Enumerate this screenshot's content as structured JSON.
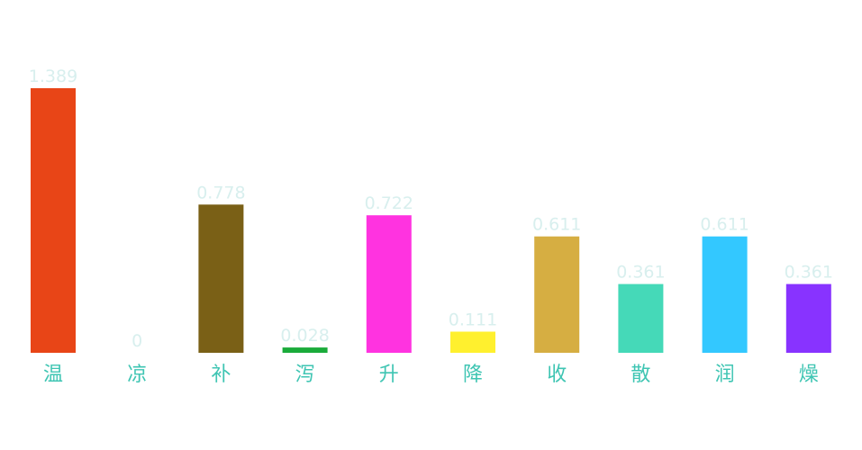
{
  "chart_data": {
    "type": "bar",
    "categories": [
      "温",
      "凉",
      "补",
      "泻",
      "升",
      "降",
      "收",
      "散",
      "润",
      "燥"
    ],
    "values": [
      1.389,
      0,
      0.778,
      0.028,
      0.722,
      0.111,
      0.611,
      0.361,
      0.611,
      0.361
    ],
    "value_labels": [
      "1.389",
      "0",
      "0.778",
      "0.028",
      "0.722",
      "0.111",
      "0.611",
      "0.361",
      "0.611",
      "0.361"
    ],
    "colors": [
      "#e84517",
      "#33d6c8",
      "#7a6016",
      "#1aab3a",
      "#ff33e0",
      "#fff02e",
      "#d6ae42",
      "#45d9b8",
      "#33c8ff",
      "#8833ff"
    ],
    "ylim": [
      0,
      1.389
    ],
    "title": "",
    "xlabel": "",
    "ylabel": "",
    "grid": false,
    "legend": false
  }
}
